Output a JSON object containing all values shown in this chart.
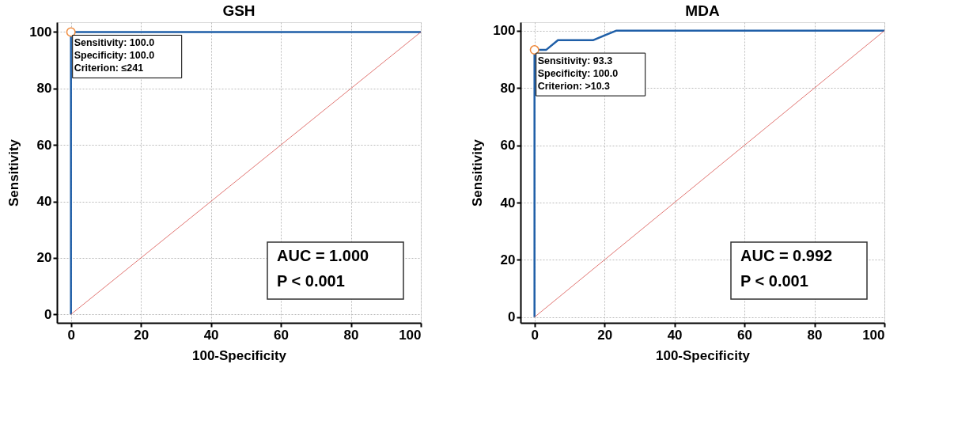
{
  "chart_data": [
    {
      "type": "line",
      "title": "GSH",
      "xlabel": "100-Specificity",
      "ylabel": "Sensitivity",
      "xlim": [
        -4,
        100
      ],
      "ylim": [
        -3,
        103.5
      ],
      "xticks": [
        0,
        20,
        40,
        60,
        80,
        100
      ],
      "yticks": [
        0,
        20,
        40,
        60,
        80,
        100
      ],
      "grid": true,
      "series": [
        {
          "color": "#1f5fa8",
          "x": [
            0,
            0,
            100
          ],
          "values": [
            0,
            100,
            100
          ]
        },
        {
          "color": "#d9534f",
          "x": [
            0,
            100
          ],
          "values": [
            0,
            100
          ]
        },
        {
          "type": "scatter",
          "marker": "circle",
          "color": "#f08a3c",
          "x": [
            0
          ],
          "values": [
            100
          ]
        }
      ],
      "annotations": [
        {
          "text": "Sensitivity: 100.0\nSpecificity: 100.0\nCriterion: ≤241",
          "x": 0,
          "y": 100
        },
        "AUC = 1.000\nP < 0.001"
      ]
    },
    {
      "type": "line",
      "title": "MDA",
      "xlabel": "100-Specificity",
      "ylabel": "Sensitivity",
      "xlim": [
        -4,
        100
      ],
      "ylim": [
        -2,
        103
      ],
      "xticks": [
        0,
        20,
        40,
        60,
        80,
        100
      ],
      "yticks": [
        0,
        20,
        40,
        60,
        80,
        100
      ],
      "grid": true,
      "series": [
        {
          "color": "#1f5fa8",
          "x": [
            0,
            0,
            3.3,
            6.7,
            16.7,
            23.3,
            100
          ],
          "values": [
            0,
            93.3,
            93.3,
            96.7,
            96.7,
            100,
            100
          ]
        },
        {
          "color": "#d9534f",
          "x": [
            0,
            100
          ],
          "values": [
            0,
            100
          ]
        },
        {
          "type": "scatter",
          "marker": "circle",
          "color": "#f08a3c",
          "x": [
            0
          ],
          "values": [
            93.3
          ]
        }
      ],
      "annotations": [
        {
          "text": "Sensitivity: 93.3\nSpecificity: 100.0\nCriterion: >10.3",
          "x": 0,
          "y": 93.3
        },
        "AUC = 0.992\nP < 0.001"
      ]
    }
  ]
}
